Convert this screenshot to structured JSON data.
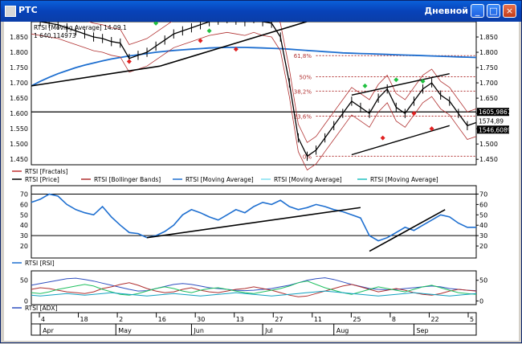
{
  "window": {
    "title": "РТС",
    "mode_label": "Дневной",
    "buttons": {
      "minimize": "_",
      "maximize": "□",
      "close": "×"
    }
  },
  "chart_data": [
    {
      "type": "line",
      "title": "RTSI [Moving Average] 14.09.1",
      "subtitle": "1 640,114973",
      "ylim": [
        1440,
        1900
      ],
      "y_ticks": [
        "1.850",
        "1.800",
        "1.750",
        "1.700",
        "1.650",
        "1.600",
        "1.550",
        "1.500",
        "1.450"
      ],
      "y_tick_values": [
        1850,
        1800,
        1750,
        1700,
        1650,
        1600,
        1550,
        1500,
        1450
      ],
      "value_labels": [
        "1605,9867",
        "1574,89",
        "1546,6089"
      ],
      "fib_levels": [
        {
          "label": "61,8%",
          "value": 1789
        },
        {
          "label": "50%",
          "value": 1720
        },
        {
          "label": "38,2%",
          "value": 1673
        },
        {
          "label": "23,6%",
          "value": 1591
        },
        {
          "label": "0%",
          "value": 1460
        }
      ],
      "legend": [
        "RTSI [Fractals]",
        "RTSI [Price]",
        "RTSI [Bollinger Bands]",
        "RTSI [Moving Average]",
        "RTSI [Moving Average]",
        "RTSI [Moving Average]"
      ],
      "colors": {
        "price": "#000000",
        "bollinger": "#b03030",
        "ma_long": "#1e6fd0",
        "ma_mid": "#80e0f0",
        "ma_fast": "#20c060",
        "fractal_up": "#20c040",
        "fractal_down": "#e02020"
      },
      "x": [
        0,
        2,
        4,
        6,
        8,
        10,
        12,
        14,
        16,
        18,
        20,
        22,
        24,
        26,
        28,
        30,
        32,
        34,
        36,
        38,
        40,
        42,
        44,
        46,
        48,
        50,
        52,
        54,
        56,
        58,
        60,
        62,
        64,
        66,
        68,
        70,
        72,
        74,
        76,
        78,
        80,
        82,
        84,
        86,
        88,
        90,
        92,
        94,
        96,
        98,
        100
      ],
      "series": [
        {
          "name": "RTSI [Price]",
          "values": [
            1905,
            1900,
            1895,
            1890,
            1880,
            1870,
            1860,
            1850,
            1845,
            1835,
            1830,
            1780,
            1790,
            1800,
            1820,
            1840,
            1860,
            1870,
            1880,
            1890,
            1900,
            1905,
            1910,
            1905,
            1900,
            1910,
            1900,
            1895,
            1850,
            1700,
            1520,
            1460,
            1480,
            1520,
            1560,
            1600,
            1640,
            1620,
            1600,
            1650,
            1680,
            1620,
            1600,
            1640,
            1680,
            1700,
            1660,
            1640,
            1600,
            1560,
            1570
          ]
        },
        {
          "name": "RTSI [Moving Average]",
          "values": [
            1690,
            1705,
            1718,
            1730,
            1740,
            1750,
            1758,
            1765,
            1772,
            1778,
            1783,
            1788,
            1792,
            1796,
            1800,
            1803,
            1806,
            1808,
            1810,
            1812,
            1814,
            1815,
            1816,
            1816,
            1816,
            1815,
            1814,
            1813,
            1812,
            1810,
            1808,
            1806,
            1804,
            1802,
            1800,
            1798,
            1797,
            1796,
            1795,
            1794,
            1793,
            1792,
            1791,
            1790,
            1789,
            1788,
            1787,
            1786,
            1785,
            1784,
            1783
          ]
        }
      ]
    },
    {
      "type": "line",
      "title": "RTSI [RSI]",
      "ylim": [
        10,
        75
      ],
      "y_ticks": [
        "70",
        "60",
        "50",
        "40",
        "30",
        "20"
      ],
      "y_tick_values": [
        70,
        60,
        50,
        40,
        30,
        20
      ],
      "levels": [
        70,
        30
      ],
      "colors": {
        "rsi": "#1e6fd0"
      },
      "x": [
        0,
        2,
        4,
        6,
        8,
        10,
        12,
        14,
        16,
        18,
        20,
        22,
        24,
        26,
        28,
        30,
        32,
        34,
        36,
        38,
        40,
        42,
        44,
        46,
        48,
        50,
        52,
        54,
        56,
        58,
        60,
        62,
        64,
        66,
        68,
        70,
        72,
        74,
        76,
        78,
        80,
        82,
        84,
        86,
        88,
        90,
        92,
        94,
        96,
        98,
        100
      ],
      "series": [
        {
          "name": "RTSI [RSI]",
          "values": [
            62,
            65,
            70,
            68,
            60,
            55,
            52,
            50,
            58,
            48,
            40,
            33,
            32,
            28,
            30,
            34,
            40,
            50,
            55,
            52,
            48,
            45,
            50,
            55,
            52,
            58,
            62,
            60,
            64,
            58,
            55,
            57,
            60,
            58,
            55,
            53,
            50,
            47,
            30,
            25,
            28,
            33,
            38,
            35,
            40,
            45,
            50,
            48,
            42,
            38,
            38
          ]
        }
      ]
    },
    {
      "type": "line",
      "title": "RTSI [ADX]",
      "ylim": [
        -5,
        65
      ],
      "y_ticks": [
        "50",
        "0"
      ],
      "y_tick_values": [
        50,
        0
      ],
      "colors": {
        "adx": "#3050c0",
        "plus_di": "#b03030",
        "minus_di": "#20c060",
        "extra": "#10a0c0"
      },
      "x": [
        0,
        2,
        4,
        6,
        8,
        10,
        12,
        14,
        16,
        18,
        20,
        22,
        24,
        26,
        28,
        30,
        32,
        34,
        36,
        38,
        40,
        42,
        44,
        46,
        48,
        50,
        52,
        54,
        56,
        58,
        60,
        62,
        64,
        66,
        68,
        70,
        72,
        74,
        76,
        78,
        80,
        82,
        84,
        86,
        88,
        90,
        92,
        94,
        96,
        98,
        100
      ],
      "series": [
        {
          "name": "RTSI [ADX]",
          "values": [
            38,
            42,
            46,
            50,
            54,
            55,
            52,
            48,
            43,
            38,
            33,
            28,
            24,
            25,
            30,
            35,
            40,
            42,
            40,
            36,
            32,
            30,
            28,
            26,
            25,
            26,
            28,
            30,
            34,
            38,
            44,
            50,
            54,
            56,
            52,
            46,
            40,
            35,
            30,
            28,
            27,
            28,
            30,
            32,
            34,
            36,
            34,
            30,
            28,
            26,
            25
          ]
        },
        {
          "values": [
            28,
            32,
            30,
            26,
            22,
            20,
            18,
            22,
            30,
            34,
            40,
            44,
            38,
            30,
            24,
            20,
            22,
            28,
            32,
            26,
            22,
            20,
            24,
            28,
            30,
            34,
            30,
            26,
            20,
            14,
            10,
            12,
            18,
            24,
            30,
            36,
            40,
            34,
            28,
            22,
            26,
            30,
            26,
            20,
            16,
            14,
            18,
            24,
            28,
            26,
            24
          ]
        },
        {
          "values": [
            20,
            18,
            22,
            28,
            32,
            36,
            40,
            36,
            28,
            22,
            16,
            14,
            18,
            24,
            30,
            34,
            30,
            24,
            20,
            26,
            30,
            32,
            28,
            24,
            20,
            18,
            22,
            26,
            30,
            36,
            44,
            48,
            40,
            32,
            26,
            20,
            16,
            22,
            28,
            34,
            30,
            26,
            22,
            28,
            34,
            38,
            32,
            26,
            20,
            18,
            16
          ]
        },
        {
          "values": [
            14,
            12,
            14,
            16,
            18,
            16,
            14,
            16,
            18,
            20,
            18,
            16,
            14,
            12,
            14,
            16,
            18,
            16,
            14,
            12,
            14,
            16,
            18,
            20,
            18,
            16,
            14,
            12,
            14,
            16,
            18,
            20,
            22,
            24,
            22,
            20,
            18,
            16,
            14,
            12,
            14,
            16,
            18,
            20,
            18,
            16,
            14,
            12,
            14,
            16,
            18
          ]
        }
      ]
    }
  ],
  "x_axis": {
    "days": [
      "4",
      "18",
      "2",
      "16",
      "30",
      "13",
      "27",
      "11",
      "25",
      "8",
      "22",
      "5"
    ],
    "months": [
      "Apr",
      "May",
      "Jun",
      "Jul",
      "Aug",
      "Sep"
    ]
  }
}
